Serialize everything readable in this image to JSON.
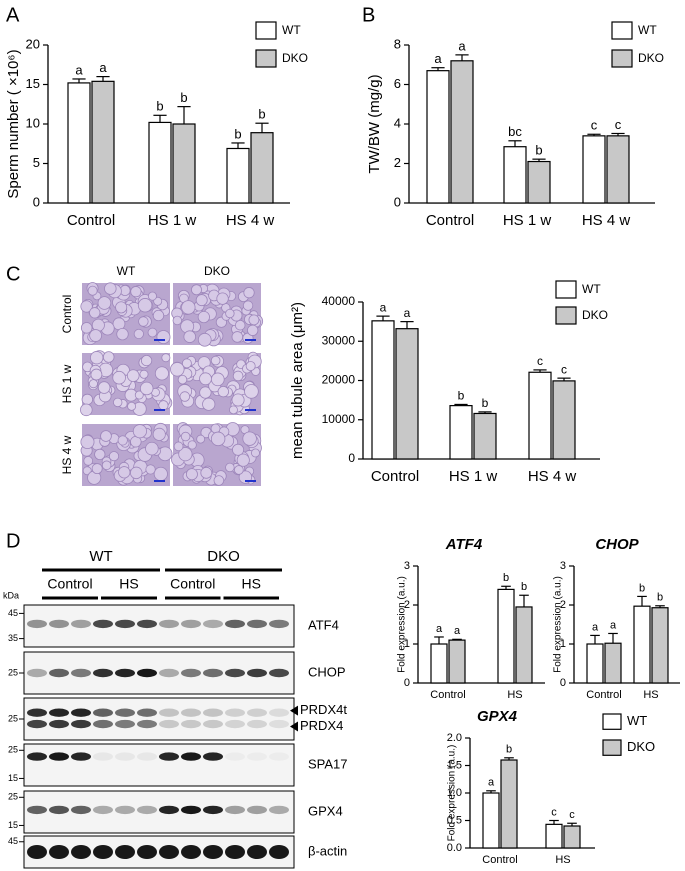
{
  "panel_labels": [
    "A",
    "B",
    "C",
    "D"
  ],
  "chart_data": [
    {
      "type": "bar",
      "ylabel": "Sperm number ( ×10⁶)",
      "categories": [
        "Control",
        "HS 1 w",
        "HS 4 w"
      ],
      "series": [
        {
          "name": "WT",
          "color": "#ffffff",
          "values": [
            15.2,
            10.2,
            6.9
          ],
          "errors": [
            0.5,
            0.9,
            0.7
          ],
          "annotations": [
            "a",
            "b",
            "b"
          ]
        },
        {
          "name": "DKO",
          "color": "#c8c8c8",
          "values": [
            15.4,
            10.0,
            8.9
          ],
          "errors": [
            0.6,
            2.2,
            1.2
          ],
          "annotations": [
            "a",
            "b",
            "b"
          ]
        }
      ],
      "ylim": [
        0,
        20
      ],
      "yticks": [
        0,
        5,
        10,
        15,
        20
      ],
      "legend": "upper right"
    },
    {
      "type": "bar",
      "ylabel": "TW/BW (mg/g)",
      "categories": [
        "Control",
        "HS 1 w",
        "HS 4 w"
      ],
      "series": [
        {
          "name": "WT",
          "color": "#ffffff",
          "values": [
            6.7,
            2.85,
            3.4
          ],
          "errors": [
            0.15,
            0.3,
            0.08
          ],
          "annotations": [
            "a",
            "bc",
            "c"
          ]
        },
        {
          "name": "DKO",
          "color": "#c8c8c8",
          "values": [
            7.2,
            2.1,
            3.4
          ],
          "errors": [
            0.3,
            0.12,
            0.12
          ],
          "annotations": [
            "a",
            "b",
            "c"
          ]
        }
      ],
      "ylim": [
        0,
        8
      ],
      "yticks": [
        0,
        2,
        4,
        6,
        8
      ],
      "legend": "upper right"
    },
    {
      "type": "bar",
      "ylabel": "mean tubule area (μm²)",
      "categories": [
        "Control",
        "HS 1 w",
        "HS 4 w"
      ],
      "series": [
        {
          "name": "WT",
          "color": "#ffffff",
          "values": [
            35200,
            13600,
            22100
          ],
          "errors": [
            1200,
            300,
            600
          ],
          "annotations": [
            "a",
            "b",
            "c"
          ]
        },
        {
          "name": "DKO",
          "color": "#c8c8c8",
          "values": [
            33200,
            11600,
            19900
          ],
          "errors": [
            1800,
            400,
            700
          ],
          "annotations": [
            "a",
            "b",
            "c"
          ]
        }
      ],
      "ylim": [
        0,
        40000
      ],
      "yticks": [
        0,
        10000,
        20000,
        30000,
        40000
      ],
      "legend": "upper right"
    },
    {
      "type": "bar",
      "title": "ATF4",
      "ylabel": "Fold expression (a.u.)",
      "categories": [
        "Control",
        "HS"
      ],
      "series": [
        {
          "name": "WT",
          "color": "#ffffff",
          "values": [
            1.0,
            2.4
          ],
          "errors": [
            0.18,
            0.08
          ],
          "annotations": [
            "a",
            "b"
          ]
        },
        {
          "name": "DKO",
          "color": "#c8c8c8",
          "values": [
            1.1,
            1.95
          ],
          "errors": [
            0.02,
            0.3
          ],
          "annotations": [
            "a",
            "b"
          ]
        }
      ],
      "ylim": [
        0,
        3
      ],
      "yticks": [
        0,
        1,
        2,
        3
      ]
    },
    {
      "type": "bar",
      "title": "CHOP",
      "ylabel": "Fold expression (a.u.)",
      "categories": [
        "Control",
        "HS"
      ],
      "series": [
        {
          "name": "WT",
          "color": "#ffffff",
          "values": [
            1.0,
            1.97
          ],
          "errors": [
            0.22,
            0.25
          ],
          "annotations": [
            "a",
            "b"
          ]
        },
        {
          "name": "DKO",
          "color": "#c8c8c8",
          "values": [
            1.02,
            1.93
          ],
          "errors": [
            0.25,
            0.05
          ],
          "annotations": [
            "a",
            "b"
          ]
        }
      ],
      "ylim": [
        0,
        3
      ],
      "yticks": [
        0,
        1,
        2,
        3
      ]
    },
    {
      "type": "bar",
      "title": "GPX4",
      "ylabel": "Fold expression (a.u.)",
      "categories": [
        "Control",
        "HS"
      ],
      "series": [
        {
          "name": "WT",
          "color": "#ffffff",
          "values": [
            1.0,
            0.43
          ],
          "errors": [
            0.04,
            0.07
          ],
          "annotations": [
            "a",
            "c"
          ]
        },
        {
          "name": "DKO",
          "color": "#c8c8c8",
          "values": [
            1.6,
            0.4
          ],
          "errors": [
            0.04,
            0.05
          ],
          "annotations": [
            "b",
            "c"
          ]
        }
      ],
      "ylim": [
        0,
        2
      ],
      "yticks": [
        {
          "value": 0,
          "label": "0.0"
        },
        0.5,
        {
          "value": 1,
          "label": "1.0"
        },
        1.5,
        {
          "value": 2,
          "label": "2.0"
        }
      ],
      "legend": "right"
    }
  ],
  "histology": {
    "columns": [
      "WT",
      "DKO"
    ],
    "rows": [
      "Control",
      "HS 1 w",
      "HS 4 w"
    ]
  },
  "blot": {
    "unit": "kDa",
    "groups": [
      {
        "label": "WT",
        "conditions": [
          "Control",
          "HS"
        ]
      },
      {
        "label": "DKO",
        "conditions": [
          "Control",
          "HS"
        ]
      }
    ],
    "rows": [
      {
        "markers": [
          45,
          35
        ],
        "labels": [
          "ATF4"
        ]
      },
      {
        "markers": [
          25
        ],
        "labels": [
          "CHOP"
        ]
      },
      {
        "markers": [
          25
        ],
        "labels": [
          "PRDX4t",
          "PRDX4"
        ]
      },
      {
        "markers": [
          25,
          15
        ],
        "labels": [
          "SPA17"
        ]
      },
      {
        "markers": [
          25,
          15
        ],
        "labels": [
          "GPX4"
        ]
      },
      {
        "markers": [
          45
        ],
        "labels": [
          "β-actin"
        ]
      }
    ]
  }
}
